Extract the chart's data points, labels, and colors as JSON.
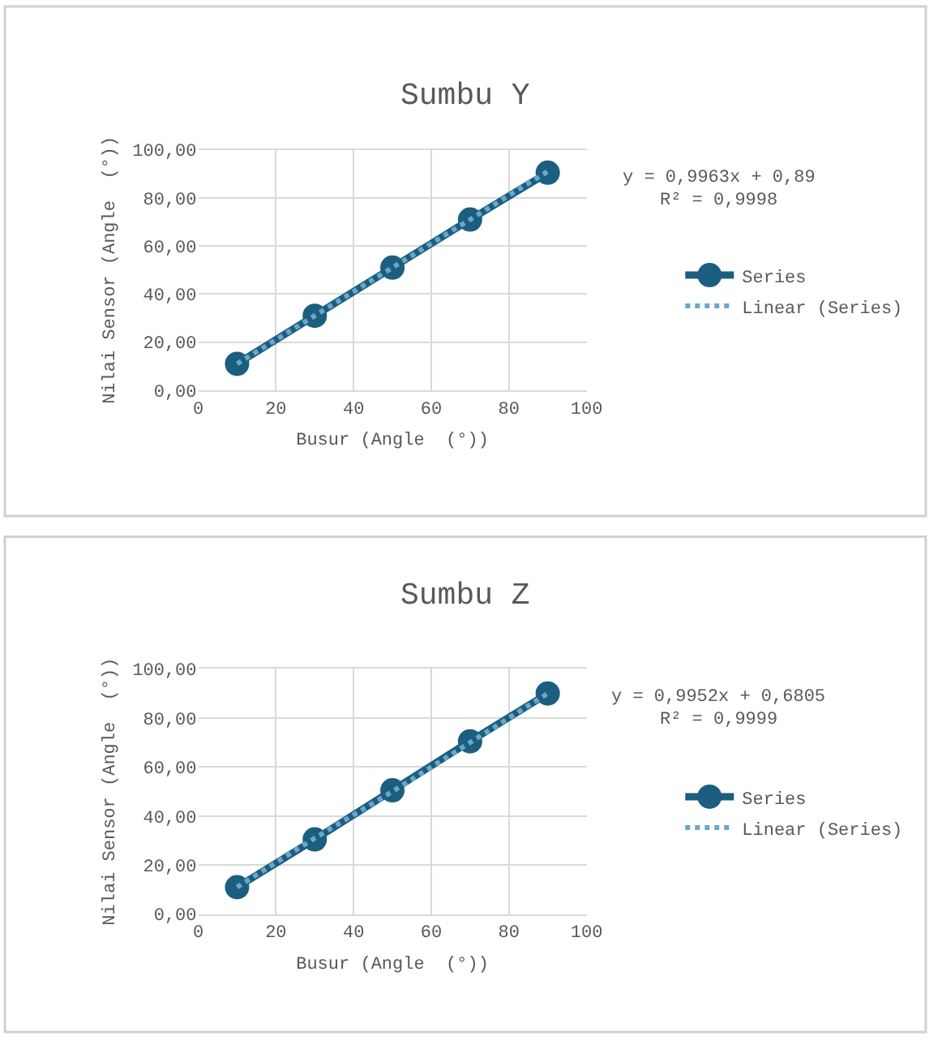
{
  "chart_data": [
    {
      "type": "line",
      "title": "Sumbu Y",
      "xlabel": "Busur (Angle  (°))",
      "ylabel": "Nilai Sensor (Angle  (°))",
      "x": [
        10,
        30,
        50,
        70,
        90
      ],
      "xlim": [
        0,
        100
      ],
      "xticks": [
        0,
        20,
        40,
        60,
        80,
        100
      ],
      "ylim": [
        0,
        100
      ],
      "yticks": [
        {
          "value": 0,
          "label": "0,00"
        },
        {
          "value": 20,
          "label": "20,00"
        },
        {
          "value": 40,
          "label": "40,00"
        },
        {
          "value": 60,
          "label": "60,00"
        },
        {
          "value": 80,
          "label": "80,00"
        },
        {
          "value": 100,
          "label": "100,00"
        }
      ],
      "grid": true,
      "legend": "right",
      "marker": "circle",
      "line_style": "solid",
      "annotations": [
        "y = 0,9963x + 0,89",
        "R² = 0,9998"
      ],
      "series": [
        {
          "name": "Series",
          "color": "#1b5e80",
          "values": [
            11,
            31,
            51,
            71,
            90.5
          ]
        },
        {
          "name": "Linear (Series)",
          "type": "line",
          "color": "#6aa7c9",
          "values": [
            11,
            31,
            51,
            71,
            91
          ],
          "line_style": "dotted",
          "marker": "none"
        }
      ]
    },
    {
      "type": "line",
      "title": "Sumbu Z",
      "xlabel": "Busur (Angle  (°))",
      "ylabel": "Nilai Sensor (Angle  (°))",
      "x": [
        10,
        30,
        50,
        70,
        90
      ],
      "xlim": [
        0,
        100
      ],
      "xticks": [
        0,
        20,
        40,
        60,
        80,
        100
      ],
      "ylim": [
        0,
        100
      ],
      "yticks": [
        {
          "value": 0,
          "label": "0,00"
        },
        {
          "value": 20,
          "label": "20,00"
        },
        {
          "value": 40,
          "label": "40,00"
        },
        {
          "value": 60,
          "label": "60,00"
        },
        {
          "value": 80,
          "label": "80,00"
        },
        {
          "value": 100,
          "label": "100,00"
        }
      ],
      "grid": true,
      "legend": "right",
      "marker": "circle",
      "line_style": "solid",
      "annotations": [
        "y = 0,9952x + 0,6805",
        "R² = 0,9999"
      ],
      "series": [
        {
          "name": "Series",
          "color": "#1b5e80",
          "values": [
            11,
            30.5,
            50.5,
            70.5,
            90
          ]
        },
        {
          "name": "Linear (Series)",
          "type": "line",
          "color": "#6aa7c9",
          "values": [
            11,
            31,
            50,
            70,
            90
          ],
          "line_style": "dotted",
          "marker": "none"
        }
      ]
    }
  ]
}
